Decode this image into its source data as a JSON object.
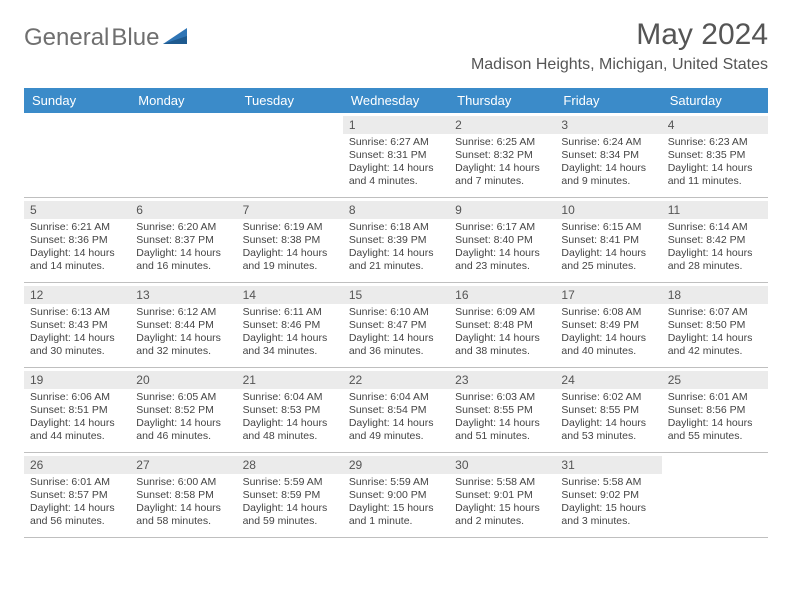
{
  "logo": {
    "text1": "General",
    "text2": "Blue"
  },
  "title": {
    "month_year": "May 2024",
    "location": "Madison Heights, Michigan, United States"
  },
  "colors": {
    "header_bg": "#3b8bc9",
    "header_text": "#ffffff",
    "daynum_bg": "#ebebeb",
    "cell_text": "#444444",
    "border": "#bfbfbf",
    "logo_gray": "#6f6f6f",
    "logo_blue": "#2f75b5"
  },
  "day_names": [
    "Sunday",
    "Monday",
    "Tuesday",
    "Wednesday",
    "Thursday",
    "Friday",
    "Saturday"
  ],
  "weeks": [
    [
      {
        "num": "",
        "sunrise": "",
        "sunset": "",
        "daylight": ""
      },
      {
        "num": "",
        "sunrise": "",
        "sunset": "",
        "daylight": ""
      },
      {
        "num": "",
        "sunrise": "",
        "sunset": "",
        "daylight": ""
      },
      {
        "num": "1",
        "sunrise": "Sunrise: 6:27 AM",
        "sunset": "Sunset: 8:31 PM",
        "daylight": "Daylight: 14 hours and 4 minutes."
      },
      {
        "num": "2",
        "sunrise": "Sunrise: 6:25 AM",
        "sunset": "Sunset: 8:32 PM",
        "daylight": "Daylight: 14 hours and 7 minutes."
      },
      {
        "num": "3",
        "sunrise": "Sunrise: 6:24 AM",
        "sunset": "Sunset: 8:34 PM",
        "daylight": "Daylight: 14 hours and 9 minutes."
      },
      {
        "num": "4",
        "sunrise": "Sunrise: 6:23 AM",
        "sunset": "Sunset: 8:35 PM",
        "daylight": "Daylight: 14 hours and 11 minutes."
      }
    ],
    [
      {
        "num": "5",
        "sunrise": "Sunrise: 6:21 AM",
        "sunset": "Sunset: 8:36 PM",
        "daylight": "Daylight: 14 hours and 14 minutes."
      },
      {
        "num": "6",
        "sunrise": "Sunrise: 6:20 AM",
        "sunset": "Sunset: 8:37 PM",
        "daylight": "Daylight: 14 hours and 16 minutes."
      },
      {
        "num": "7",
        "sunrise": "Sunrise: 6:19 AM",
        "sunset": "Sunset: 8:38 PM",
        "daylight": "Daylight: 14 hours and 19 minutes."
      },
      {
        "num": "8",
        "sunrise": "Sunrise: 6:18 AM",
        "sunset": "Sunset: 8:39 PM",
        "daylight": "Daylight: 14 hours and 21 minutes."
      },
      {
        "num": "9",
        "sunrise": "Sunrise: 6:17 AM",
        "sunset": "Sunset: 8:40 PM",
        "daylight": "Daylight: 14 hours and 23 minutes."
      },
      {
        "num": "10",
        "sunrise": "Sunrise: 6:15 AM",
        "sunset": "Sunset: 8:41 PM",
        "daylight": "Daylight: 14 hours and 25 minutes."
      },
      {
        "num": "11",
        "sunrise": "Sunrise: 6:14 AM",
        "sunset": "Sunset: 8:42 PM",
        "daylight": "Daylight: 14 hours and 28 minutes."
      }
    ],
    [
      {
        "num": "12",
        "sunrise": "Sunrise: 6:13 AM",
        "sunset": "Sunset: 8:43 PM",
        "daylight": "Daylight: 14 hours and 30 minutes."
      },
      {
        "num": "13",
        "sunrise": "Sunrise: 6:12 AM",
        "sunset": "Sunset: 8:44 PM",
        "daylight": "Daylight: 14 hours and 32 minutes."
      },
      {
        "num": "14",
        "sunrise": "Sunrise: 6:11 AM",
        "sunset": "Sunset: 8:46 PM",
        "daylight": "Daylight: 14 hours and 34 minutes."
      },
      {
        "num": "15",
        "sunrise": "Sunrise: 6:10 AM",
        "sunset": "Sunset: 8:47 PM",
        "daylight": "Daylight: 14 hours and 36 minutes."
      },
      {
        "num": "16",
        "sunrise": "Sunrise: 6:09 AM",
        "sunset": "Sunset: 8:48 PM",
        "daylight": "Daylight: 14 hours and 38 minutes."
      },
      {
        "num": "17",
        "sunrise": "Sunrise: 6:08 AM",
        "sunset": "Sunset: 8:49 PM",
        "daylight": "Daylight: 14 hours and 40 minutes."
      },
      {
        "num": "18",
        "sunrise": "Sunrise: 6:07 AM",
        "sunset": "Sunset: 8:50 PM",
        "daylight": "Daylight: 14 hours and 42 minutes."
      }
    ],
    [
      {
        "num": "19",
        "sunrise": "Sunrise: 6:06 AM",
        "sunset": "Sunset: 8:51 PM",
        "daylight": "Daylight: 14 hours and 44 minutes."
      },
      {
        "num": "20",
        "sunrise": "Sunrise: 6:05 AM",
        "sunset": "Sunset: 8:52 PM",
        "daylight": "Daylight: 14 hours and 46 minutes."
      },
      {
        "num": "21",
        "sunrise": "Sunrise: 6:04 AM",
        "sunset": "Sunset: 8:53 PM",
        "daylight": "Daylight: 14 hours and 48 minutes."
      },
      {
        "num": "22",
        "sunrise": "Sunrise: 6:04 AM",
        "sunset": "Sunset: 8:54 PM",
        "daylight": "Daylight: 14 hours and 49 minutes."
      },
      {
        "num": "23",
        "sunrise": "Sunrise: 6:03 AM",
        "sunset": "Sunset: 8:55 PM",
        "daylight": "Daylight: 14 hours and 51 minutes."
      },
      {
        "num": "24",
        "sunrise": "Sunrise: 6:02 AM",
        "sunset": "Sunset: 8:55 PM",
        "daylight": "Daylight: 14 hours and 53 minutes."
      },
      {
        "num": "25",
        "sunrise": "Sunrise: 6:01 AM",
        "sunset": "Sunset: 8:56 PM",
        "daylight": "Daylight: 14 hours and 55 minutes."
      }
    ],
    [
      {
        "num": "26",
        "sunrise": "Sunrise: 6:01 AM",
        "sunset": "Sunset: 8:57 PM",
        "daylight": "Daylight: 14 hours and 56 minutes."
      },
      {
        "num": "27",
        "sunrise": "Sunrise: 6:00 AM",
        "sunset": "Sunset: 8:58 PM",
        "daylight": "Daylight: 14 hours and 58 minutes."
      },
      {
        "num": "28",
        "sunrise": "Sunrise: 5:59 AM",
        "sunset": "Sunset: 8:59 PM",
        "daylight": "Daylight: 14 hours and 59 minutes."
      },
      {
        "num": "29",
        "sunrise": "Sunrise: 5:59 AM",
        "sunset": "Sunset: 9:00 PM",
        "daylight": "Daylight: 15 hours and 1 minute."
      },
      {
        "num": "30",
        "sunrise": "Sunrise: 5:58 AM",
        "sunset": "Sunset: 9:01 PM",
        "daylight": "Daylight: 15 hours and 2 minutes."
      },
      {
        "num": "31",
        "sunrise": "Sunrise: 5:58 AM",
        "sunset": "Sunset: 9:02 PM",
        "daylight": "Daylight: 15 hours and 3 minutes."
      },
      {
        "num": "",
        "sunrise": "",
        "sunset": "",
        "daylight": ""
      }
    ]
  ]
}
